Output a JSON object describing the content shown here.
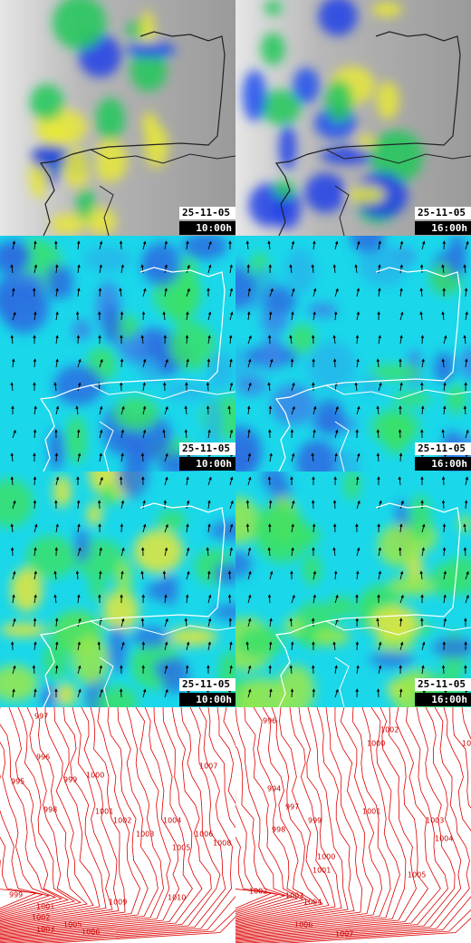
{
  "panels": [
    {
      "date": "25-11-05",
      "time": "10:00h"
    },
    {
      "date": "25-11-05",
      "time": "16:00h"
    },
    {
      "date": "25-11-05",
      "time": "10:00h"
    },
    {
      "date": "25-11-05",
      "time": "16:00h"
    },
    {
      "date": "25-11-05",
      "time": "10:00h"
    },
    {
      "date": "25-11-05",
      "time": "16:00h"
    }
  ],
  "isobars": [
    {
      "labels": [
        997,
        995,
        996,
        998,
        999,
        1000,
        1001,
        1002,
        1003,
        1004,
        1005,
        1006,
        1007,
        1008,
        999,
        1001,
        1002,
        1003,
        1005,
        1006,
        1009,
        1010
      ]
    },
    {
      "labels": [
        996,
        994,
        997,
        998,
        999,
        1000,
        1001,
        1002,
        1003,
        1004,
        1005,
        1000,
        1001,
        1002,
        1003,
        1004,
        1005,
        1006,
        1007
      ]
    }
  ]
}
